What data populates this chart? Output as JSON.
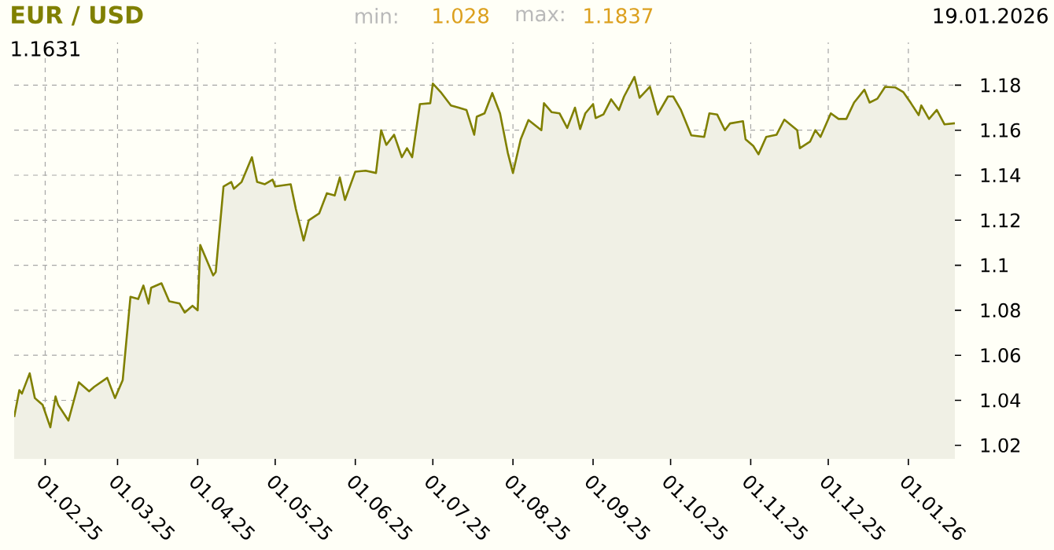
{
  "chart_data": {
    "type": "area",
    "title": "EUR / USD",
    "annotations": [
      "min:",
      "1.028",
      "max:",
      "1.1837",
      "19.01.2026",
      "1.1631"
    ],
    "x": [
      "2025-01-20",
      "2025-01-22",
      "2025-01-23",
      "2025-01-26",
      "2025-01-28",
      "2025-01-31",
      "2025-02-03",
      "2025-02-05",
      "2025-02-06",
      "2025-02-10",
      "2025-02-14",
      "2025-02-18",
      "2025-02-20",
      "2025-02-25",
      "2025-02-28",
      "2025-03-03",
      "2025-03-06",
      "2025-03-09",
      "2025-03-11",
      "2025-03-13",
      "2025-03-14",
      "2025-03-18",
      "2025-03-21",
      "2025-03-25",
      "2025-03-27",
      "2025-03-30",
      "2025-04-01",
      "2025-04-02",
      "2025-04-07",
      "2025-04-08",
      "2025-04-11",
      "2025-04-14",
      "2025-04-15",
      "2025-04-18",
      "2025-04-22",
      "2025-04-24",
      "2025-04-27",
      "2025-04-30",
      "2025-05-01",
      "2025-05-07",
      "2025-05-09",
      "2025-05-12",
      "2025-05-14",
      "2025-05-18",
      "2025-05-21",
      "2025-05-24",
      "2025-05-26",
      "2025-05-28",
      "2025-06-01",
      "2025-06-05",
      "2025-06-09",
      "2025-06-11",
      "2025-06-13",
      "2025-06-16",
      "2025-06-19",
      "2025-06-21",
      "2025-06-23",
      "2025-06-26",
      "2025-06-30",
      "2025-07-01",
      "2025-07-04",
      "2025-07-08",
      "2025-07-11",
      "2025-07-14",
      "2025-07-17",
      "2025-07-18",
      "2025-07-21",
      "2025-07-24",
      "2025-07-27",
      "2025-07-30",
      "2025-08-01",
      "2025-08-04",
      "2025-08-07",
      "2025-08-12",
      "2025-08-13",
      "2025-08-16",
      "2025-08-19",
      "2025-08-22",
      "2025-08-25",
      "2025-08-27",
      "2025-08-29",
      "2025-09-01",
      "2025-09-02",
      "2025-09-05",
      "2025-09-08",
      "2025-09-11",
      "2025-09-13",
      "2025-09-17",
      "2025-09-19",
      "2025-09-23",
      "2025-09-26",
      "2025-09-30",
      "2025-10-02",
      "2025-10-05",
      "2025-10-09",
      "2025-10-14",
      "2025-10-16",
      "2025-10-19",
      "2025-10-22",
      "2025-10-24",
      "2025-10-29",
      "2025-10-30",
      "2025-11-02",
      "2025-11-04",
      "2025-11-07",
      "2025-11-11",
      "2025-11-14",
      "2025-11-19",
      "2025-11-20",
      "2025-11-24",
      "2025-11-26",
      "2025-11-28",
      "2025-12-02",
      "2025-12-05",
      "2025-12-08",
      "2025-12-11",
      "2025-12-15",
      "2025-12-17",
      "2025-12-20",
      "2025-12-23",
      "2025-12-27",
      "2025-12-30",
      "2026-01-02",
      "2026-01-05",
      "2026-01-06",
      "2026-01-09",
      "2026-01-12",
      "2026-01-15",
      "2026-01-19"
    ],
    "series": [
      {
        "color": "#808000",
        "values": [
          1.0326,
          1.0445,
          1.043,
          1.052,
          1.041,
          1.038,
          1.028,
          1.0417,
          1.038,
          1.031,
          1.048,
          1.044,
          1.046,
          1.05,
          1.041,
          1.049,
          1.086,
          1.085,
          1.091,
          1.083,
          1.09,
          1.092,
          1.084,
          1.083,
          1.079,
          1.082,
          1.08,
          1.109,
          1.0955,
          1.097,
          1.135,
          1.137,
          1.134,
          1.137,
          1.148,
          1.137,
          1.136,
          1.138,
          1.135,
          1.136,
          1.125,
          1.111,
          1.12,
          1.123,
          1.132,
          1.131,
          1.139,
          1.129,
          1.1416,
          1.142,
          1.141,
          1.16,
          1.1535,
          1.158,
          1.148,
          1.152,
          1.148,
          1.1716,
          1.172,
          1.1807,
          1.177,
          1.171,
          1.17,
          1.169,
          1.158,
          1.166,
          1.1675,
          1.1765,
          1.1675,
          1.15,
          1.141,
          1.156,
          1.1645,
          1.16,
          1.172,
          1.168,
          1.1675,
          1.161,
          1.17,
          1.1605,
          1.1675,
          1.1716,
          1.1654,
          1.167,
          1.1737,
          1.169,
          1.175,
          1.1837,
          1.1744,
          1.1793,
          1.167,
          1.175,
          1.175,
          1.169,
          1.1577,
          1.157,
          1.1675,
          1.167,
          1.16,
          1.163,
          1.164,
          1.156,
          1.153,
          1.1493,
          1.157,
          1.158,
          1.1647,
          1.16,
          1.152,
          1.155,
          1.16,
          1.157,
          1.1675,
          1.165,
          1.165,
          1.1723,
          1.178,
          1.1723,
          1.174,
          1.1793,
          1.179,
          1.177,
          1.172,
          1.1667,
          1.171,
          1.165,
          1.169,
          1.1626,
          1.1631
        ]
      }
    ],
    "xlim": [
      "2025-01-20",
      "2026-01-19"
    ],
    "xticks": [
      {
        "value": "2025-02-01",
        "label": "01.02.25"
      },
      {
        "value": "2025-03-01",
        "label": "01.03.25"
      },
      {
        "value": "2025-04-01",
        "label": "01.04.25"
      },
      {
        "value": "2025-05-01",
        "label": "01.05.25"
      },
      {
        "value": "2025-06-01",
        "label": "01.06.25"
      },
      {
        "value": "2025-07-01",
        "label": "01.07.25"
      },
      {
        "value": "2025-08-01",
        "label": "01.08.25"
      },
      {
        "value": "2025-09-01",
        "label": "01.09.25"
      },
      {
        "value": "2025-10-01",
        "label": "01.10.25"
      },
      {
        "value": "2025-11-01",
        "label": "01.11.25"
      },
      {
        "value": "2025-12-01",
        "label": "01.12.25"
      },
      {
        "value": "2026-01-01",
        "label": "01.01.26"
      }
    ],
    "ylim": [
      1.014,
      1.199
    ],
    "yticks": [
      1.02,
      1.04,
      1.06,
      1.08,
      1.1,
      1.12,
      1.14,
      1.16,
      1.18
    ],
    "grid": true,
    "marker": "none",
    "line_style": "solid"
  }
}
